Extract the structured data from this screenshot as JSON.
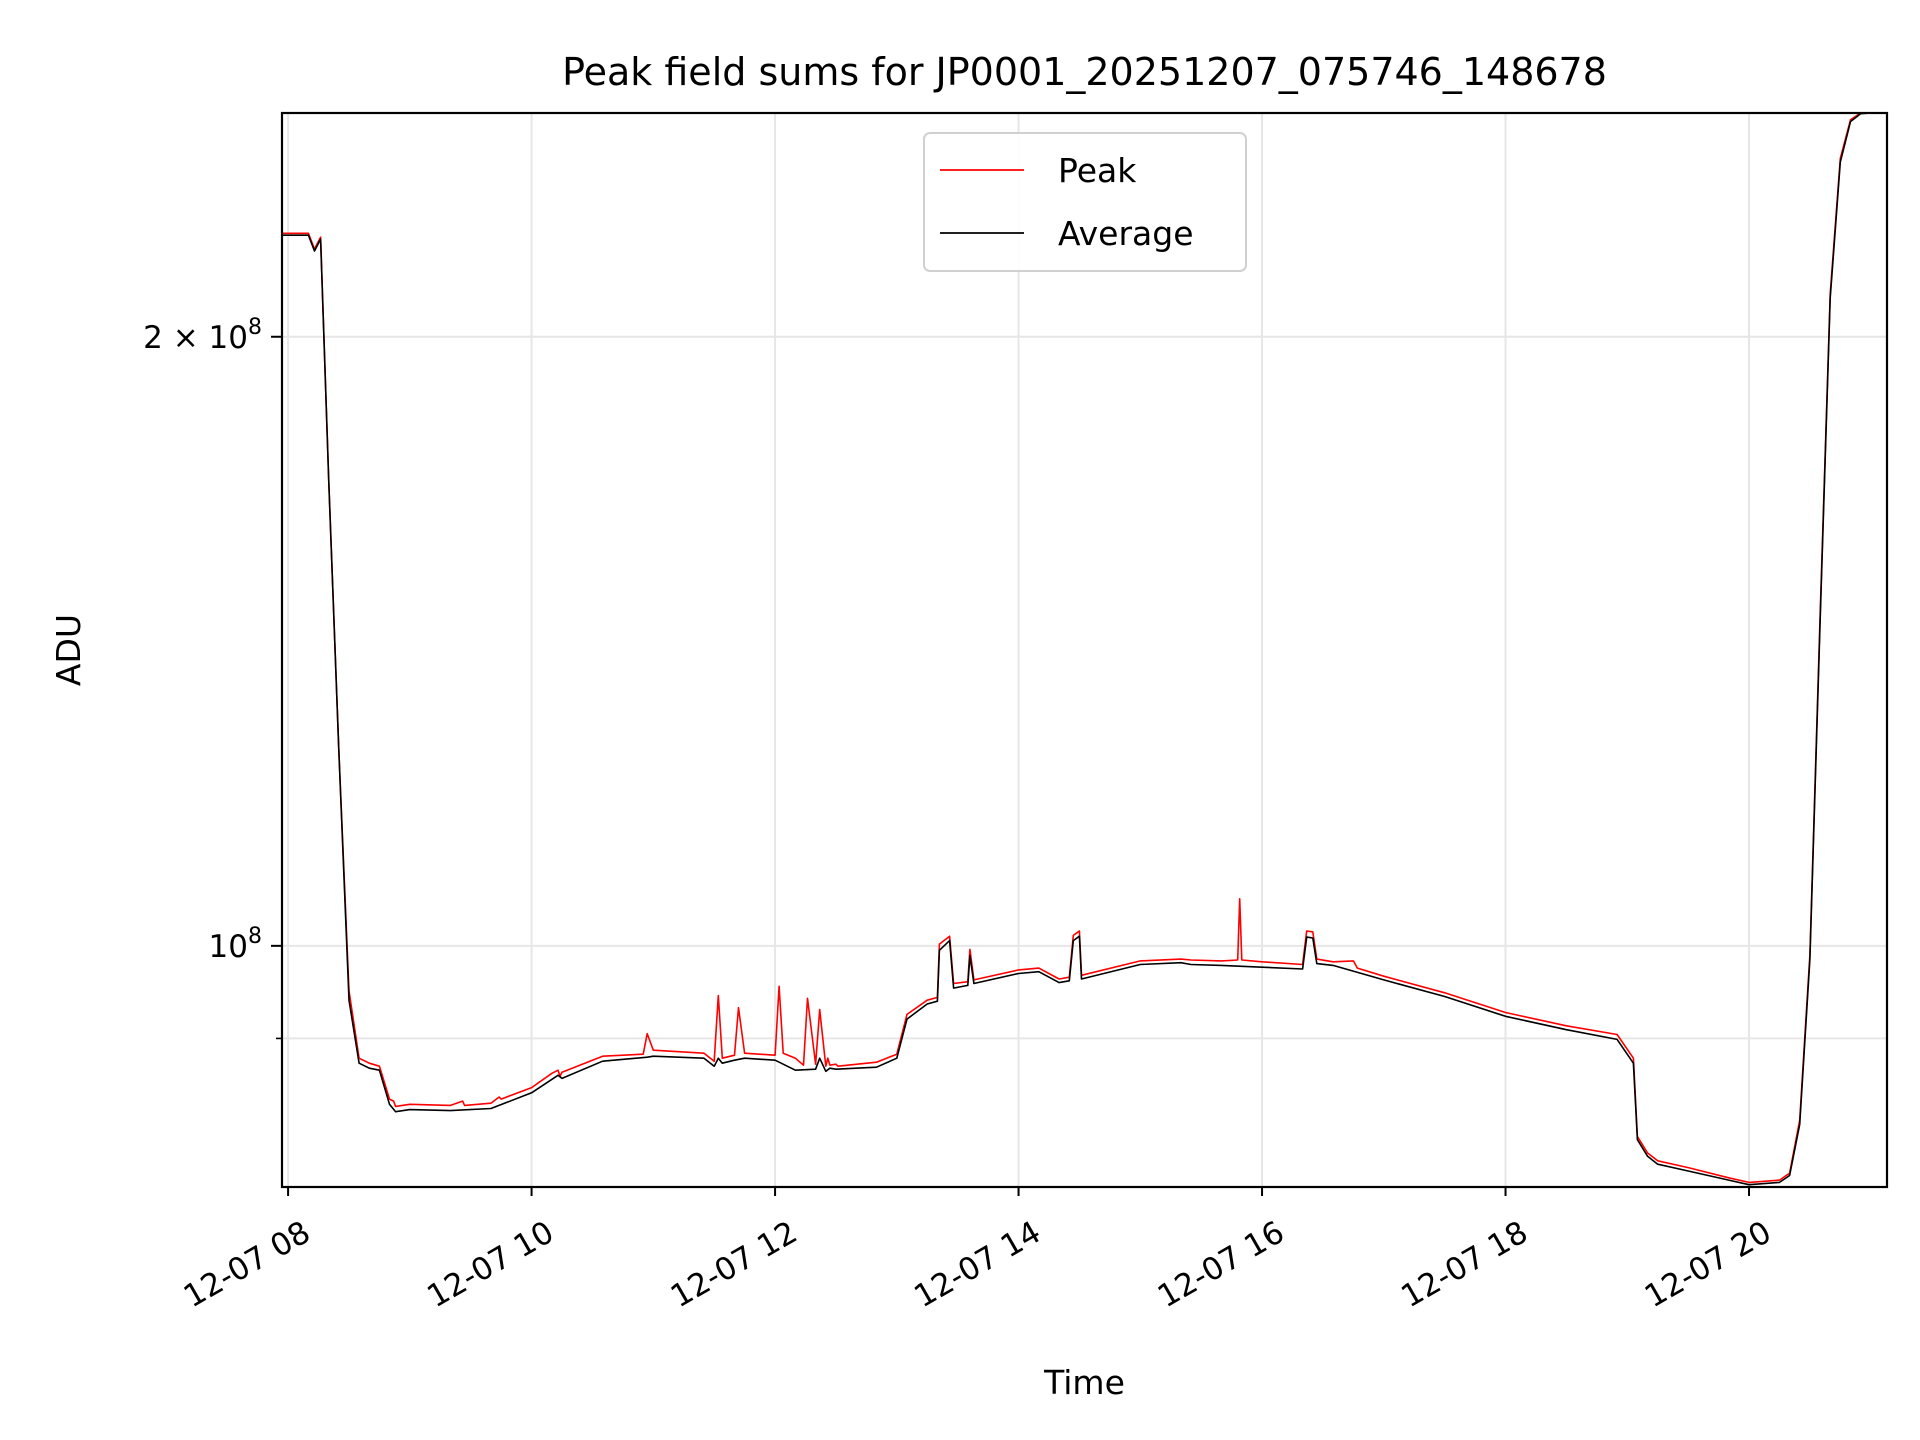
{
  "chart_data": {
    "type": "line",
    "title": "Peak field sums for JP0001_20251207_075746_148678",
    "xlabel": "Time",
    "ylabel": "ADU",
    "yscale": "log",
    "xlim": [
      "2025-12-07 07:57",
      "2025-12-07 21:08"
    ],
    "ylim": [
      76000000,
      258000000
    ],
    "grid": true,
    "legend_position": "top-center",
    "x_ticks": [
      {
        "value": "2025-12-07 08:00",
        "label": "12-07 08"
      },
      {
        "value": "2025-12-07 10:00",
        "label": "12-07 10"
      },
      {
        "value": "2025-12-07 12:00",
        "label": "12-07 12"
      },
      {
        "value": "2025-12-07 14:00",
        "label": "12-07 14"
      },
      {
        "value": "2025-12-07 16:00",
        "label": "12-07 16"
      },
      {
        "value": "2025-12-07 18:00",
        "label": "12-07 18"
      },
      {
        "value": "2025-12-07 20:00",
        "label": "12-07 20"
      }
    ],
    "y_ticks": [
      {
        "value": 200000000,
        "label_base": "2 × 10",
        "label_exp": "8"
      },
      {
        "value": 100000000,
        "label_base": "10",
        "label_exp": "8"
      }
    ],
    "y_minor_ticks": [
      90000000
    ],
    "series": [
      {
        "name": "Peak",
        "color": "#ff0000",
        "x": [
          "2025-12-07 07:57",
          "2025-12-07 08:05",
          "2025-12-07 08:10",
          "2025-12-07 08:13",
          "2025-12-07 08:16",
          "2025-12-07 08:20",
          "2025-12-07 08:25",
          "2025-12-07 08:30",
          "2025-12-07 08:35",
          "2025-12-07 08:40",
          "2025-12-07 08:45",
          "2025-12-07 08:50",
          "2025-12-07 08:52",
          "2025-12-07 08:53",
          "2025-12-07 09:00",
          "2025-12-07 09:20",
          "2025-12-07 09:26",
          "2025-12-07 09:27",
          "2025-12-07 09:40",
          "2025-12-07 09:44",
          "2025-12-07 09:45",
          "2025-12-07 10:00",
          "2025-12-07 10:10",
          "2025-12-07 10:13",
          "2025-12-07 10:14",
          "2025-12-07 10:15",
          "2025-12-07 10:35",
          "2025-12-07 10:55",
          "2025-12-07 10:57",
          "2025-12-07 11:00",
          "2025-12-07 11:25",
          "2025-12-07 11:30",
          "2025-12-07 11:32",
          "2025-12-07 11:34",
          "2025-12-07 11:40",
          "2025-12-07 11:42",
          "2025-12-07 11:45",
          "2025-12-07 12:00",
          "2025-12-07 12:02",
          "2025-12-07 12:04",
          "2025-12-07 12:10",
          "2025-12-07 12:14",
          "2025-12-07 12:16",
          "2025-12-07 12:20",
          "2025-12-07 12:22",
          "2025-12-07 12:25",
          "2025-12-07 12:26",
          "2025-12-07 12:27",
          "2025-12-07 12:30",
          "2025-12-07 12:31",
          "2025-12-07 12:50",
          "2025-12-07 13:00",
          "2025-12-07 13:05",
          "2025-12-07 13:15",
          "2025-12-07 13:20",
          "2025-12-07 13:21",
          "2025-12-07 13:26",
          "2025-12-07 13:28",
          "2025-12-07 13:35",
          "2025-12-07 13:36",
          "2025-12-07 13:38",
          "2025-12-07 14:00",
          "2025-12-07 14:10",
          "2025-12-07 14:20",
          "2025-12-07 14:25",
          "2025-12-07 14:27",
          "2025-12-07 14:30",
          "2025-12-07 14:31",
          "2025-12-07 15:00",
          "2025-12-07 15:20",
          "2025-12-07 15:25",
          "2025-12-07 15:40",
          "2025-12-07 15:48",
          "2025-12-07 15:49",
          "2025-12-07 15:50",
          "2025-12-07 16:00",
          "2025-12-07 16:20",
          "2025-12-07 16:22",
          "2025-12-07 16:25",
          "2025-12-07 16:27",
          "2025-12-07 16:35",
          "2025-12-07 16:45",
          "2025-12-07 16:47",
          "2025-12-07 17:00",
          "2025-12-07 17:30",
          "2025-12-07 18:00",
          "2025-12-07 18:30",
          "2025-12-07 18:55",
          "2025-12-07 19:03",
          "2025-12-07 19:05",
          "2025-12-07 19:10",
          "2025-12-07 19:15",
          "2025-12-07 19:30",
          "2025-12-07 19:50",
          "2025-12-07 20:00",
          "2025-12-07 20:15",
          "2025-12-07 20:20",
          "2025-12-07 20:25",
          "2025-12-07 20:30",
          "2025-12-07 20:35",
          "2025-12-07 20:40",
          "2025-12-07 20:45",
          "2025-12-07 20:50",
          "2025-12-07 20:55",
          "2025-12-07 21:00",
          "2025-12-07 21:03",
          "2025-12-07 21:08"
        ],
        "y": [
          225000000,
          225000000,
          225000000,
          221000000,
          224000000,
          170000000,
          125000000,
          95000000,
          88000000,
          87500000,
          87200000,
          84000000,
          83800000,
          83300000,
          83500000,
          83400000,
          83800000,
          83400000,
          83600000,
          84200000,
          84000000,
          85100000,
          86500000,
          86800000,
          86200000,
          86600000,
          88200000,
          88400000,
          90500000,
          88800000,
          88500000,
          87700000,
          94500000,
          88000000,
          88300000,
          93200000,
          88500000,
          88300000,
          95500000,
          88500000,
          88000000,
          87300000,
          94200000,
          87400000,
          93000000,
          87200000,
          88000000,
          87300000,
          87400000,
          87200000,
          87600000,
          88400000,
          92500000,
          94000000,
          94300000,
          100200000,
          101100000,
          95800000,
          96000000,
          99600000,
          96200000,
          97300000,
          97500000,
          96300000,
          96500000,
          101200000,
          101700000,
          96700000,
          98300000,
          98500000,
          98400000,
          98300000,
          98400000,
          105500000,
          98400000,
          98200000,
          97900000,
          101700000,
          101600000,
          98500000,
          98200000,
          98300000,
          97500000,
          96600000,
          94800000,
          92700000,
          91300000,
          90400000,
          88000000,
          80500000,
          79000000,
          78300000,
          77700000,
          76800000,
          76400000,
          76600000,
          77200000,
          82000000,
          99000000,
          145000000,
          210000000,
          245000000,
          256000000,
          258000000,
          258000000,
          258000000,
          258000000
        ]
      },
      {
        "name": "Average",
        "color": "#000000",
        "x": [
          "2025-12-07 07:57",
          "2025-12-07 08:05",
          "2025-12-07 08:10",
          "2025-12-07 08:13",
          "2025-12-07 08:16",
          "2025-12-07 08:20",
          "2025-12-07 08:25",
          "2025-12-07 08:30",
          "2025-12-07 08:35",
          "2025-12-07 08:40",
          "2025-12-07 08:45",
          "2025-12-07 08:50",
          "2025-12-07 08:53",
          "2025-12-07 09:00",
          "2025-12-07 09:20",
          "2025-12-07 09:40",
          "2025-12-07 10:00",
          "2025-12-07 10:13",
          "2025-12-07 10:15",
          "2025-12-07 10:35",
          "2025-12-07 10:57",
          "2025-12-07 11:00",
          "2025-12-07 11:25",
          "2025-12-07 11:30",
          "2025-12-07 11:32",
          "2025-12-07 11:34",
          "2025-12-07 11:40",
          "2025-12-07 11:45",
          "2025-12-07 12:00",
          "2025-12-07 12:10",
          "2025-12-07 12:20",
          "2025-12-07 12:22",
          "2025-12-07 12:25",
          "2025-12-07 12:27",
          "2025-12-07 12:30",
          "2025-12-07 12:50",
          "2025-12-07 13:00",
          "2025-12-07 13:05",
          "2025-12-07 13:15",
          "2025-12-07 13:20",
          "2025-12-07 13:21",
          "2025-12-07 13:26",
          "2025-12-07 13:28",
          "2025-12-07 13:35",
          "2025-12-07 13:36",
          "2025-12-07 13:38",
          "2025-12-07 14:00",
          "2025-12-07 14:10",
          "2025-12-07 14:20",
          "2025-12-07 14:25",
          "2025-12-07 14:27",
          "2025-12-07 14:30",
          "2025-12-07 14:31",
          "2025-12-07 15:00",
          "2025-12-07 15:20",
          "2025-12-07 15:25",
          "2025-12-07 15:40",
          "2025-12-07 16:00",
          "2025-12-07 16:20",
          "2025-12-07 16:22",
          "2025-12-07 16:25",
          "2025-12-07 16:27",
          "2025-12-07 16:35",
          "2025-12-07 17:00",
          "2025-12-07 17:30",
          "2025-12-07 18:00",
          "2025-12-07 18:30",
          "2025-12-07 18:55",
          "2025-12-07 19:03",
          "2025-12-07 19:05",
          "2025-12-07 19:10",
          "2025-12-07 19:15",
          "2025-12-07 19:30",
          "2025-12-07 19:50",
          "2025-12-07 20:00",
          "2025-12-07 20:15",
          "2025-12-07 20:20",
          "2025-12-07 20:25",
          "2025-12-07 20:30",
          "2025-12-07 20:35",
          "2025-12-07 20:40",
          "2025-12-07 20:45",
          "2025-12-07 20:50",
          "2025-12-07 20:55",
          "2025-12-07 21:00",
          "2025-12-07 21:03",
          "2025-12-07 21:08"
        ],
        "y": [
          224500000,
          224500000,
          224500000,
          220500000,
          223500000,
          170000000,
          125000000,
          94000000,
          87500000,
          87000000,
          86800000,
          83500000,
          82800000,
          83000000,
          82900000,
          83100000,
          84600000,
          86300000,
          86000000,
          87700000,
          88100000,
          88200000,
          88000000,
          87200000,
          88000000,
          87500000,
          87800000,
          88000000,
          87800000,
          86800000,
          86900000,
          88000000,
          86700000,
          87000000,
          86900000,
          87100000,
          88000000,
          92000000,
          93600000,
          93900000,
          99500000,
          100600000,
          95300000,
          95600000,
          98900000,
          95800000,
          96900000,
          97100000,
          95900000,
          96100000,
          100600000,
          101100000,
          96300000,
          97900000,
          98100000,
          97900000,
          97800000,
          97600000,
          97400000,
          101000000,
          100900000,
          98000000,
          97800000,
          96200000,
          94400000,
          92300000,
          90900000,
          89900000,
          87500000,
          80200000,
          78700000,
          78000000,
          77400000,
          76600000,
          76200000,
          76400000,
          77000000,
          81600000,
          98500000,
          144000000,
          209000000,
          244000000,
          255500000,
          257800000,
          258000000,
          258000000,
          258000000
        ]
      }
    ]
  }
}
